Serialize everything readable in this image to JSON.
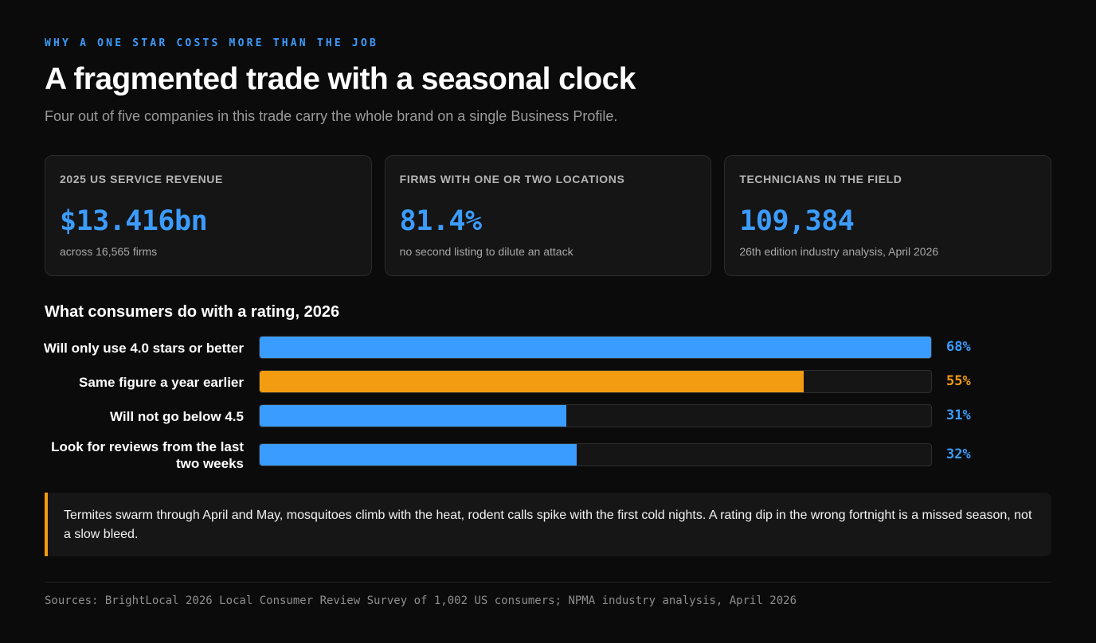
{
  "header": {
    "kicker": "WHY A ONE STAR COSTS MORE THAN THE JOB",
    "title": "A fragmented trade with a seasonal clock",
    "subtitle": "Four out of five companies in this trade carry the whole brand on a single Business Profile."
  },
  "cards": [
    {
      "label": "2025 US SERVICE REVENUE",
      "value": "$13.416bn",
      "note": "across 16,565 firms"
    },
    {
      "label": "FIRMS WITH ONE OR TWO LOCATIONS",
      "value": "81.4%",
      "note": "no second listing to dilute an attack"
    },
    {
      "label": "TECHNICIANS IN THE FIELD",
      "value": "109,384",
      "note": "26th edition industry analysis, April 2026"
    }
  ],
  "colors": {
    "accent_blue": "#3b9cff",
    "accent_orange": "#f39c12",
    "background": "#0b0b0b",
    "card_background": "#151515"
  },
  "chart_data": {
    "type": "bar",
    "orientation": "horizontal",
    "title": "What consumers do with a rating, 2026",
    "xlim": [
      0,
      68
    ],
    "categories": [
      "Will only use 4.0 stars or better",
      "Same figure a year earlier",
      "Will not go below 4.5",
      "Look for reviews from the last two weeks"
    ],
    "values": [
      68,
      55,
      31,
      32
    ],
    "value_labels": [
      "68%",
      "55%",
      "31%",
      "32%"
    ],
    "bar_colors": [
      "#3b9cff",
      "#f39c12",
      "#3b9cff",
      "#3b9cff"
    ]
  },
  "callout": {
    "text": "Termites swarm through April and May, mosquitoes climb with the heat, rodent calls spike with the first cold nights. A rating dip in the wrong fortnight is a missed season, not a slow bleed."
  },
  "footer": {
    "sources": "Sources: BrightLocal 2026 Local Consumer Review Survey of 1,002 US consumers; NPMA industry analysis, April 2026"
  }
}
